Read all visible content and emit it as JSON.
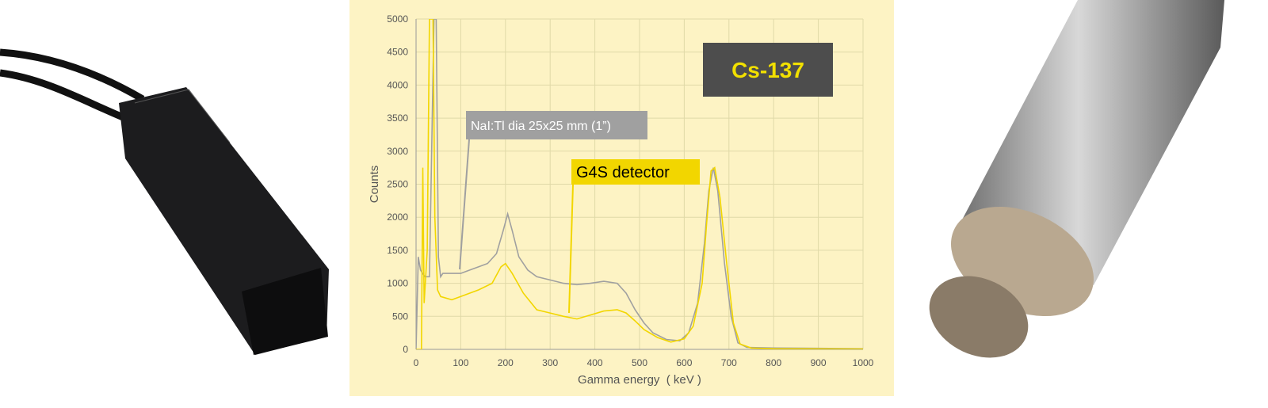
{
  "chart_data": {
    "type": "line",
    "annotation": "Cs-137",
    "xlabel": "Gamma energy  ( keV )",
    "ylabel": "Counts",
    "xlim": [
      0,
      1000
    ],
    "ylim": [
      0,
      5000
    ],
    "xticks": [
      0,
      100,
      200,
      300,
      400,
      500,
      600,
      700,
      800,
      900,
      1000
    ],
    "yticks": [
      0,
      500,
      1000,
      1500,
      2000,
      2500,
      3000,
      3500,
      4000,
      4500,
      5000
    ],
    "grid": true,
    "series": [
      {
        "name": "NaI:Tl dia 25x25 mm (1”)",
        "color": "#a0a0a0",
        "x": [
          0,
          5,
          10,
          20,
          30,
          35,
          40,
          45,
          50,
          55,
          60,
          80,
          100,
          120,
          140,
          160,
          180,
          195,
          205,
          215,
          230,
          250,
          270,
          300,
          330,
          360,
          390,
          420,
          450,
          470,
          490,
          510,
          530,
          560,
          590,
          610,
          630,
          645,
          655,
          665,
          675,
          690,
          705,
          720,
          740,
          800,
          900,
          1000
        ],
        "values": [
          0,
          1400,
          1200,
          1100,
          1100,
          3000,
          5000,
          5000,
          1400,
          1100,
          1150,
          1150,
          1150,
          1200,
          1250,
          1300,
          1450,
          1800,
          2050,
          1800,
          1400,
          1200,
          1100,
          1050,
          1000,
          980,
          1000,
          1030,
          1000,
          850,
          600,
          400,
          250,
          150,
          130,
          250,
          700,
          1600,
          2400,
          2750,
          2400,
          1300,
          500,
          100,
          30,
          20,
          15,
          10
        ]
      },
      {
        "name": "G4S detector",
        "color": "#f2d600",
        "x": [
          0,
          12,
          15,
          18,
          25,
          30,
          38,
          42,
          48,
          55,
          80,
          100,
          140,
          170,
          190,
          200,
          215,
          240,
          270,
          300,
          330,
          360,
          390,
          420,
          450,
          470,
          490,
          510,
          540,
          570,
          600,
          620,
          640,
          650,
          660,
          668,
          680,
          695,
          710,
          725,
          750,
          800,
          1000
        ],
        "values": [
          0,
          0,
          2750,
          700,
          1500,
          5000,
          5000,
          2000,
          900,
          800,
          750,
          800,
          900,
          1000,
          1250,
          1300,
          1150,
          850,
          600,
          550,
          500,
          460,
          520,
          580,
          600,
          550,
          430,
          300,
          180,
          110,
          160,
          350,
          1000,
          1900,
          2700,
          2750,
          2300,
          1300,
          400,
          80,
          20,
          10,
          5
        ]
      }
    ]
  }
}
